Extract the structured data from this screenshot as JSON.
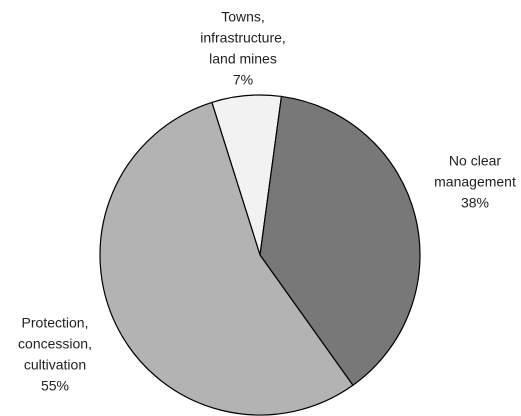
{
  "chart_data": {
    "type": "pie",
    "categories": [
      [
        "Towns,",
        "infrastructure,",
        "land mines"
      ],
      [
        "No clear",
        "management"
      ],
      [
        "Protection,",
        "concession,",
        "cultivation"
      ]
    ],
    "values": [
      7,
      38,
      55
    ],
    "value_labels": [
      "7%",
      "38%",
      "55%"
    ],
    "colors": [
      "#f2f2f2",
      "#787878",
      "#b3b3b3"
    ]
  }
}
